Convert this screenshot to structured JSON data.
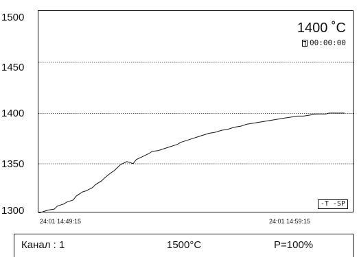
{
  "chart_data": {
    "type": "line",
    "yticks": [
      "1500",
      "1450",
      "1400",
      "1350",
      "1300"
    ],
    "ylim": [
      1300,
      1500
    ],
    "xticks": [
      "24:01 14:49:15",
      "24:01 14:59:15"
    ],
    "grid": "horizontal dotted",
    "series": [
      {
        "name": "T",
        "x": [
          0,
          2,
          3,
          5,
          6,
          8,
          9,
          11,
          12,
          14,
          15,
          17,
          18,
          20,
          21,
          23,
          24,
          25,
          26,
          28,
          30,
          31,
          33,
          35,
          36,
          38,
          40,
          42,
          44,
          45,
          47,
          48,
          49,
          50,
          52,
          54,
          56,
          58,
          60,
          62,
          64,
          66,
          68,
          70,
          72,
          74,
          76,
          78,
          80,
          82,
          84,
          86,
          88,
          90,
          91,
          92,
          93,
          94,
          95,
          96,
          97
        ],
        "y": [
          1300,
          1302,
          1303,
          1304,
          1307,
          1309,
          1311,
          1313,
          1317,
          1321,
          1322,
          1325,
          1328,
          1332,
          1335,
          1340,
          1342,
          1345,
          1348,
          1351,
          1349,
          1353,
          1356,
          1359,
          1361,
          1362,
          1364,
          1366,
          1368,
          1370,
          1372,
          1373,
          1374,
          1375,
          1377,
          1379,
          1380,
          1382,
          1383,
          1385,
          1386,
          1388,
          1389,
          1390,
          1391,
          1392,
          1393,
          1394,
          1395,
          1396,
          1396,
          1397,
          1398,
          1398,
          1398,
          1399,
          1399,
          1399,
          1399,
          1399,
          1399
        ]
      }
    ],
    "legend": "bottom-right"
  },
  "readout": {
    "temperature": "1400 ˚C",
    "timer": "00:00:00"
  },
  "legend": {
    "text": "-T -SP"
  },
  "status": {
    "channel": "Канал : 1",
    "setpoint": "1500°C",
    "power": "P=100%"
  }
}
